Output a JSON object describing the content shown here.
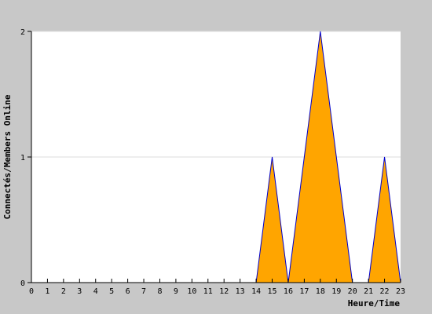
{
  "chart_data": {
    "type": "area",
    "title": "",
    "xlabel": "Heure/Time",
    "ylabel": "Connectés/Members Online",
    "x": [
      0,
      1,
      2,
      3,
      4,
      5,
      6,
      7,
      8,
      9,
      10,
      11,
      12,
      13,
      14,
      15,
      16,
      17,
      18,
      19,
      20,
      21,
      22,
      23
    ],
    "xticks": [
      "0",
      "1",
      "2",
      "3",
      "4",
      "5",
      "6",
      "7",
      "8",
      "9",
      "10",
      "11",
      "12",
      "13",
      "14",
      "15",
      "16",
      "17",
      "18",
      "19",
      "20",
      "21",
      "22",
      "23"
    ],
    "series": [
      {
        "values": [
          0,
          0,
          0,
          0,
          0,
          0,
          0,
          0,
          0,
          0,
          0,
          0,
          0,
          0,
          0,
          1,
          0,
          1,
          2,
          1,
          0,
          0,
          1,
          0
        ]
      }
    ],
    "yticks": [
      "0",
      "1",
      "2"
    ],
    "xlim": [
      0,
      23
    ],
    "ylim": [
      0,
      2
    ],
    "grid": "horizontal",
    "colors": {
      "fill": "#FFA500",
      "line": "#0000CC",
      "background": "#C8C8C8",
      "plot_background": "#FFFFFF",
      "grid": "#DDDDDD",
      "axis": "#000000"
    }
  }
}
